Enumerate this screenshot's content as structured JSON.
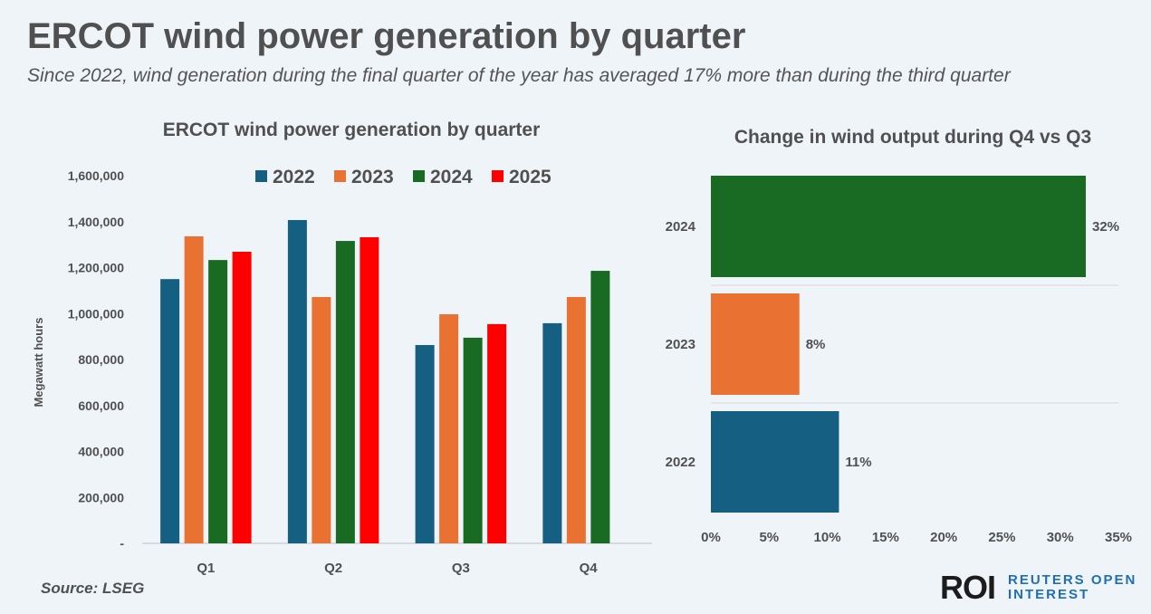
{
  "header": {
    "title": "ERCOT wind power generation by quarter",
    "subtitle": "Since 2022, wind generation during the final quarter of the year has averaged 17% more than during the third quarter"
  },
  "footer": {
    "source": "Source: LSEG",
    "logo": "ROI",
    "logo_text_line1": "REUTERS OPEN",
    "logo_text_line2": "INTEREST"
  },
  "chart_data": [
    {
      "type": "bar",
      "title": "ERCOT wind power generation by quarter",
      "ylabel": "Megawatt hours",
      "xlabel": "",
      "categories": [
        "Q1",
        "Q2",
        "Q3",
        "Q4"
      ],
      "ylim": [
        0,
        1600000
      ],
      "yticks": [
        "-",
        "200,000",
        "400,000",
        "600,000",
        "800,000",
        "1,000,000",
        "1,200,000",
        "1,400,000",
        "1,600,000"
      ],
      "legend": "top",
      "series": [
        {
          "name": "2022",
          "color": "#155f82",
          "values": [
            1150000,
            1407000,
            863000,
            958000
          ]
        },
        {
          "name": "2023",
          "color": "#e97132",
          "values": [
            1336000,
            1072000,
            997000,
            1072000
          ]
        },
        {
          "name": "2024",
          "color": "#196b24",
          "values": [
            1233000,
            1316000,
            895000,
            1186000
          ]
        },
        {
          "name": "2025",
          "color": "#ff0000",
          "values": [
            1269000,
            1332000,
            954000,
            null
          ]
        }
      ]
    },
    {
      "type": "bar",
      "orientation": "horizontal",
      "title": "Change in wind output during Q4 vs Q3",
      "categories": [
        "2024",
        "2023",
        "2022"
      ],
      "values": [
        32.2,
        7.6,
        11.0
      ],
      "data_labels": [
        "32%",
        "8%",
        "11%"
      ],
      "colors": [
        "#196b24",
        "#e97132",
        "#155f82"
      ],
      "xlim": [
        0,
        35
      ],
      "xticks": [
        "0%",
        "5%",
        "10%",
        "15%",
        "20%",
        "25%",
        "30%",
        "35%"
      ]
    }
  ]
}
